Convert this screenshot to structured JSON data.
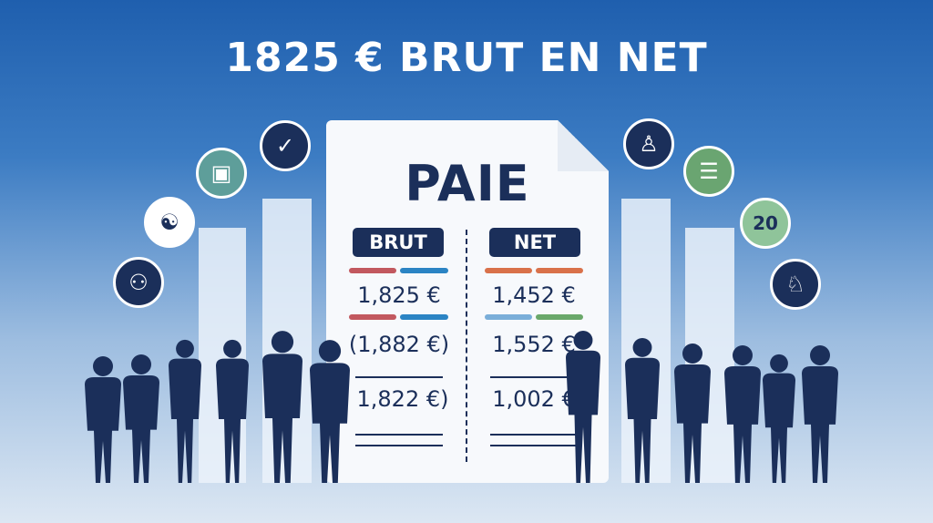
{
  "title": "1825 € BRUT EN NET",
  "document": {
    "heading": "PAIE",
    "brut": {
      "label": "BRUT",
      "values": [
        "1,825 €",
        "(1,882 €)",
        "1,822 €)"
      ]
    },
    "net": {
      "label": "NET",
      "values": [
        "1,452 €",
        "1,552 €",
        "1,002 €"
      ]
    }
  },
  "icons": [
    {
      "name": "person-lifting-icon",
      "color": "#1b2f5a"
    },
    {
      "name": "people-meeting-icon",
      "color": "#ffffff"
    },
    {
      "name": "org-chart-icon",
      "color": "#5e9e9a"
    },
    {
      "name": "checkbox-icon",
      "color": "#1b2f5a"
    },
    {
      "name": "worker-icon",
      "color": "#1b2f5a"
    },
    {
      "name": "coin-stack-icon",
      "color": "#6aa571"
    },
    {
      "name": "number-badge-icon",
      "color": "#8fc49a",
      "text": "20"
    },
    {
      "name": "people-walking-icon",
      "color": "#1b2f5a"
    }
  ],
  "colors": {
    "navy": "#1b2f5a",
    "red": "#c2585f",
    "blue": "#2b84c4",
    "orange": "#d9714a",
    "lightblue": "#7aaed9",
    "green": "#6aa86a"
  }
}
